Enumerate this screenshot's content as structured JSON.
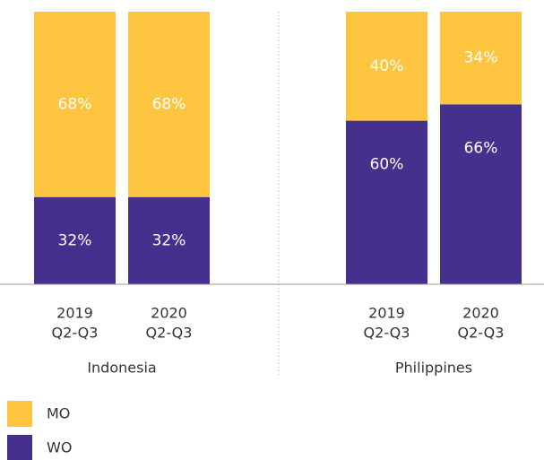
{
  "chart_data": {
    "type": "stacked_bar",
    "groups": [
      "Indonesia",
      "Philippines"
    ],
    "categories": [
      [
        "2019",
        "Q2-Q3"
      ],
      [
        "2020",
        "Q2-Q3"
      ],
      [
        "2019",
        "Q2-Q3"
      ],
      [
        "2020",
        "Q2-Q3"
      ]
    ],
    "ylim": [
      0,
      100
    ],
    "series": [
      {
        "name": "WO",
        "color": "#45308e",
        "values": [
          32,
          32,
          60,
          66
        ],
        "value_labels": [
          "32%",
          "32%",
          "60%",
          "66%"
        ]
      },
      {
        "name": "MO",
        "color": "#fdc540",
        "values": [
          68,
          68,
          40,
          34
        ],
        "value_labels": [
          "68%",
          "68%",
          "40%",
          "34%"
        ]
      }
    ]
  }
}
